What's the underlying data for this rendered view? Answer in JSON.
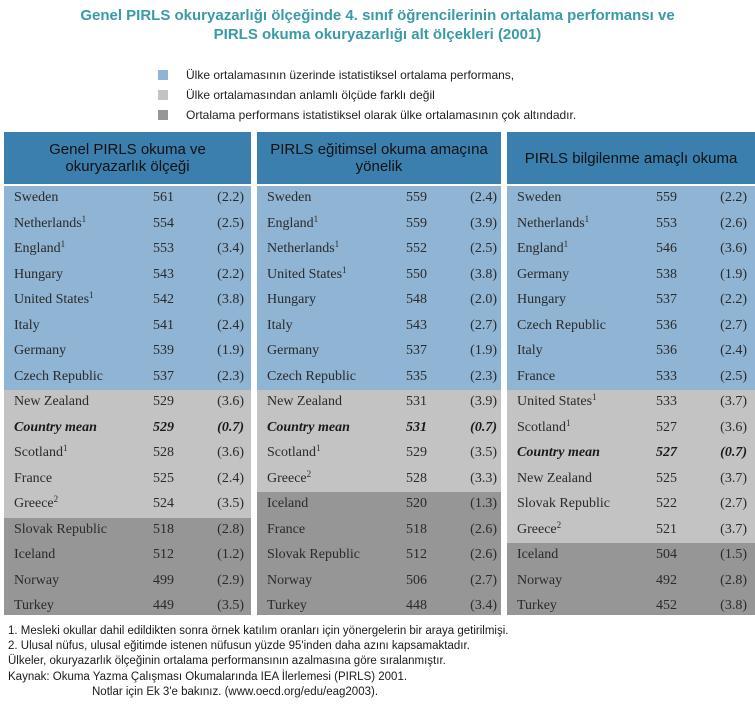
{
  "title": {
    "line1": "Genel PIRLS okuryazarlığı ölçeğinde 4. sınıf öğrencilerinin ortalama performansı ve",
    "line2": "PIRLS okuma okuryazarlığı alt ölçekleri (2001)"
  },
  "colors": {
    "title": "#3a9aa8",
    "header_bg": "#3b7fae",
    "above": "#8fb4d4",
    "similar": "#c3c3c3",
    "below": "#969696"
  },
  "legend": [
    {
      "color": "#8fb4d4",
      "text": "Ülke ortalamasının üzerinde istatistiksel ortalama performans,"
    },
    {
      "color": "#c3c3c3",
      "text": "Ülke ortalamasından anlamlı ölçüde farklı değil"
    },
    {
      "color": "#969696",
      "text": "Ortalama performans istatistiksel olarak ülke ortalamasının çok altındadır."
    }
  ],
  "columns": [
    {
      "header": "Genel PIRLS okuma ve okuryazarlık ölçeği",
      "rows": [
        {
          "country": "Sweden",
          "sup": "",
          "score": "561",
          "se": "(2.2)",
          "group": "above"
        },
        {
          "country": "Netherlands",
          "sup": "1",
          "score": "554",
          "se": "(2.5)",
          "group": "above"
        },
        {
          "country": "England",
          "sup": "1",
          "score": "553",
          "se": "(3.4)",
          "group": "above"
        },
        {
          "country": "Hungary",
          "sup": "",
          "score": "543",
          "se": "(2.2)",
          "group": "above"
        },
        {
          "country": "United States",
          "sup": "1",
          "score": "542",
          "se": "(3.8)",
          "group": "above"
        },
        {
          "country": "Italy",
          "sup": "",
          "score": "541",
          "se": "(2.4)",
          "group": "above"
        },
        {
          "country": "Germany",
          "sup": "",
          "score": "539",
          "se": "(1.9)",
          "group": "above"
        },
        {
          "country": "Czech Republic",
          "sup": "",
          "score": "537",
          "se": "(2.3)",
          "group": "above"
        },
        {
          "country": "New Zealand",
          "sup": "",
          "score": "529",
          "se": "(3.6)",
          "group": "similar"
        },
        {
          "country": "Country mean",
          "sup": "",
          "score": "529",
          "se": "(0.7)",
          "group": "similar",
          "mean": true
        },
        {
          "country": "Scotland",
          "sup": "1",
          "score": "528",
          "se": "(3.6)",
          "group": "similar"
        },
        {
          "country": "France",
          "sup": "",
          "score": "525",
          "se": "(2.4)",
          "group": "similar"
        },
        {
          "country": "Greece",
          "sup": "2",
          "score": "524",
          "se": "(3.5)",
          "group": "similar"
        },
        {
          "country": "Slovak Republic",
          "sup": "",
          "score": "518",
          "se": "(2.8)",
          "group": "below"
        },
        {
          "country": "Iceland",
          "sup": "",
          "score": "512",
          "se": "(1.2)",
          "group": "below"
        },
        {
          "country": "Norway",
          "sup": "",
          "score": "499",
          "se": "(2.9)",
          "group": "below"
        },
        {
          "country": "Turkey",
          "sup": "",
          "score": "449",
          "se": "(3.5)",
          "group": "below"
        }
      ]
    },
    {
      "header": "PIRLS eğitimsel okuma amaçına yönelik",
      "rows": [
        {
          "country": "Sweden",
          "sup": "",
          "score": "559",
          "se": "(2.4)",
          "group": "above"
        },
        {
          "country": "England",
          "sup": "1",
          "score": "559",
          "se": "(3.9)",
          "group": "above"
        },
        {
          "country": "Netherlands",
          "sup": "1",
          "score": "552",
          "se": "(2.5)",
          "group": "above"
        },
        {
          "country": "United States",
          "sup": "1",
          "score": "550",
          "se": "(3.8)",
          "group": "above"
        },
        {
          "country": "Hungary",
          "sup": "",
          "score": "548",
          "se": "(2.0)",
          "group": "above"
        },
        {
          "country": "Italy",
          "sup": "",
          "score": "543",
          "se": "(2.7)",
          "group": "above"
        },
        {
          "country": "Germany",
          "sup": "",
          "score": "537",
          "se": "(1.9)",
          "group": "above"
        },
        {
          "country": "Czech Republic",
          "sup": "",
          "score": "535",
          "se": "(2.3)",
          "group": "above"
        },
        {
          "country": "New Zealand",
          "sup": "",
          "score": "531",
          "se": "(3.9)",
          "group": "similar"
        },
        {
          "country": "Country mean",
          "sup": "",
          "score": "531",
          "se": "(0.7)",
          "group": "similar",
          "mean": true
        },
        {
          "country": "Scotland",
          "sup": "1",
          "score": "529",
          "se": "(3.5)",
          "group": "similar"
        },
        {
          "country": "Greece",
          "sup": "2",
          "score": "528",
          "se": "(3.3)",
          "group": "similar"
        },
        {
          "country": "Iceland",
          "sup": "",
          "score": "520",
          "se": "(1.3)",
          "group": "below"
        },
        {
          "country": "France",
          "sup": "",
          "score": "518",
          "se": "(2.6)",
          "group": "below"
        },
        {
          "country": "Slovak Republic",
          "sup": "",
          "score": "512",
          "se": "(2.6)",
          "group": "below"
        },
        {
          "country": "Norway",
          "sup": "",
          "score": "506",
          "se": "(2.7)",
          "group": "below"
        },
        {
          "country": "Turkey",
          "sup": "",
          "score": "448",
          "se": "(3.4)",
          "group": "below"
        }
      ]
    },
    {
      "header": "PIRLS bilgilenme amaçlı okuma",
      "rows": [
        {
          "country": "Sweden",
          "sup": "",
          "score": "559",
          "se": "(2.2)",
          "group": "above"
        },
        {
          "country": "Netherlands",
          "sup": "1",
          "score": "553",
          "se": "(2.6)",
          "group": "above"
        },
        {
          "country": "England",
          "sup": "1",
          "score": "546",
          "se": "(3.6)",
          "group": "above"
        },
        {
          "country": "Germany",
          "sup": "",
          "score": "538",
          "se": "(1.9)",
          "group": "above"
        },
        {
          "country": "Hungary",
          "sup": "",
          "score": "537",
          "se": "(2.2)",
          "group": "above"
        },
        {
          "country": "Czech Republic",
          "sup": "",
          "score": "536",
          "se": "(2.7)",
          "group": "above"
        },
        {
          "country": "Italy",
          "sup": "",
          "score": "536",
          "se": "(2.4)",
          "group": "above"
        },
        {
          "country": "France",
          "sup": "",
          "score": "533",
          "se": "(2.5)",
          "group": "above"
        },
        {
          "country": "United States",
          "sup": "1",
          "score": "533",
          "se": "(3.7)",
          "group": "similar"
        },
        {
          "country": "Scotland",
          "sup": "1",
          "score": "527",
          "se": "(3.6)",
          "group": "similar"
        },
        {
          "country": "Country mean",
          "sup": "",
          "score": "527",
          "se": "(0.7)",
          "group": "similar",
          "mean": true
        },
        {
          "country": "New Zealand",
          "sup": "",
          "score": "525",
          "se": "(3.7)",
          "group": "similar"
        },
        {
          "country": "Slovak Republic",
          "sup": "",
          "score": "522",
          "se": "(2.7)",
          "group": "similar"
        },
        {
          "country": "Greece",
          "sup": "2",
          "score": "521",
          "se": "(3.7)",
          "group": "similar"
        },
        {
          "country": "Iceland",
          "sup": "",
          "score": "504",
          "se": "(1.5)",
          "group": "below"
        },
        {
          "country": "Norway",
          "sup": "",
          "score": "492",
          "se": "(2.8)",
          "group": "below"
        },
        {
          "country": "Turkey",
          "sup": "",
          "score": "452",
          "se": "(3.8)",
          "group": "below"
        }
      ]
    }
  ],
  "notes": [
    "1. Mesleki okullar dahil edildikten sonra örnek katılım oranları için yönergelerin bir araya getirilmişi.",
    "2. Ulusal nüfus, ulusal eğitimde istenen nüfusun yüzde 95'inden daha azını kapsamaktadır.",
    "Ülkeler, okuryazarlık ölçeğinin ortalama performansının azalmasına göre sıralanmıştır.",
    "Kaynak: Okuma Yazma Çalışması Okumalarında IEA İlerlemesi (PIRLS) 2001.",
    "Notlar için Ek 3'e bakınız.  (www.oecd.org/edu/eag2003)."
  ]
}
